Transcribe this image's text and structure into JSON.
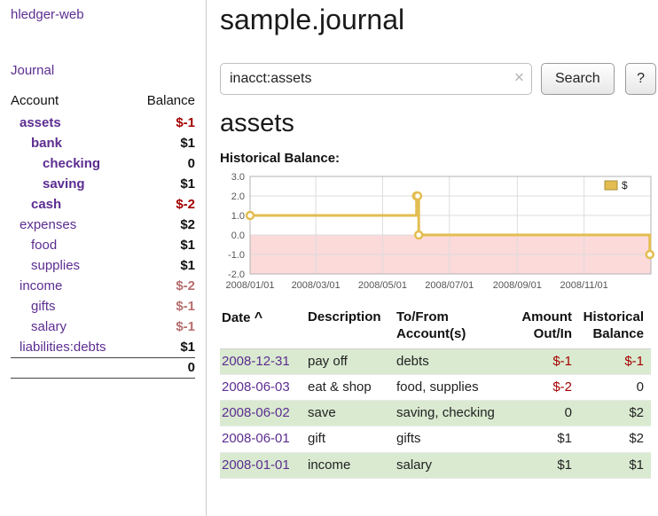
{
  "colors": {
    "accent_purple": "#5c2d91",
    "negative_red": "#a40000",
    "negative_muted": "#b76e6e",
    "row_highlight_green": "#d9ead0",
    "chart_line_gold": "#e3bd51",
    "chart_negative_pink": "#fcdada"
  },
  "sidebar": {
    "brand": "hledger-web",
    "journal_label": "Journal",
    "accounts_table": {
      "headers": [
        "Account",
        "Balance"
      ],
      "rows": [
        {
          "account": "assets",
          "indent": 0,
          "bold": true,
          "balance": "$-1",
          "negative": true
        },
        {
          "account": "bank",
          "indent": 1,
          "bold": true,
          "balance": "$1",
          "negative": false
        },
        {
          "account": "checking",
          "indent": 2,
          "bold": true,
          "balance": "0",
          "negative": false
        },
        {
          "account": "saving",
          "indent": 2,
          "bold": true,
          "balance": "$1",
          "negative": false
        },
        {
          "account": "cash",
          "indent": 1,
          "bold": true,
          "balance": "$-2",
          "negative": true
        },
        {
          "account": "expenses",
          "indent": 0,
          "bold": false,
          "balance": "$2",
          "negative": false
        },
        {
          "account": "food",
          "indent": 1,
          "bold": false,
          "balance": "$1",
          "negative": false
        },
        {
          "account": "supplies",
          "indent": 1,
          "bold": false,
          "balance": "$1",
          "negative": false
        },
        {
          "account": "income",
          "indent": 0,
          "bold": false,
          "balance": "$-2",
          "negative": true
        },
        {
          "account": "gifts",
          "indent": 1,
          "bold": false,
          "balance": "$-1",
          "negative": true
        },
        {
          "account": "salary",
          "indent": 1,
          "bold": false,
          "balance": "$-1",
          "negative": true
        },
        {
          "account": "liabilities:debts",
          "indent": 0,
          "bold": false,
          "balance": "$1",
          "negative": false
        }
      ],
      "total": "0"
    }
  },
  "header": {
    "title": "sample.journal"
  },
  "search": {
    "value": "inacct:assets",
    "clear_icon": "×",
    "button_label": "Search",
    "help_label": "?"
  },
  "account_page": {
    "title": "assets",
    "chart_label": "Historical Balance:"
  },
  "chart_data": {
    "type": "line",
    "step": true,
    "title": "Historical Balance of assets",
    "ylim": [
      -2,
      3
    ],
    "yticks": [
      "3.0",
      "2.0",
      "1.0",
      "0.0",
      "-1.0",
      "-2.0"
    ],
    "xlim_days": [
      0,
      366
    ],
    "xticks": [
      {
        "day": 0,
        "label": "2008/01/01"
      },
      {
        "day": 60,
        "label": "2008/03/01"
      },
      {
        "day": 121,
        "label": "2008/05/01"
      },
      {
        "day": 182,
        "label": "2008/07/01"
      },
      {
        "day": 244,
        "label": "2008/09/01"
      },
      {
        "day": 305,
        "label": "2008/11/01"
      }
    ],
    "legend": [
      {
        "label": "$",
        "color": "#e3bd51"
      }
    ],
    "negative_region": {
      "from": -2,
      "to": 0,
      "color": "#fcdada"
    },
    "series": [
      {
        "name": "$",
        "color": "#e3bd51",
        "points": [
          {
            "date": "2008-01-01",
            "day": 0,
            "value": 1
          },
          {
            "date": "2008-06-01",
            "day": 152,
            "value": 2
          },
          {
            "date": "2008-06-02",
            "day": 153,
            "value": 2
          },
          {
            "date": "2008-06-03",
            "day": 154,
            "value": 0
          },
          {
            "date": "2008-12-31",
            "day": 365,
            "value": -1
          }
        ]
      }
    ],
    "grid": true,
    "legend_position": "top-right"
  },
  "register_table": {
    "headers": [
      "Date",
      "Description",
      "To/From Account(s)",
      "Amount Out/In",
      "Historical Balance"
    ],
    "sort_icon": "^",
    "rows": [
      {
        "date": "2008-12-31",
        "description": "pay off",
        "accounts": "debts",
        "amount": "$-1",
        "amount_negative": true,
        "balance": "$-1",
        "balance_negative": true,
        "shaded": true
      },
      {
        "date": "2008-06-03",
        "description": "eat & shop",
        "accounts": "food, supplies",
        "amount": "$-2",
        "amount_negative": true,
        "balance": "0",
        "balance_negative": false,
        "shaded": false
      },
      {
        "date": "2008-06-02",
        "description": "save",
        "accounts": "saving, checking",
        "amount": "0",
        "amount_negative": false,
        "balance": "$2",
        "balance_negative": false,
        "shaded": true
      },
      {
        "date": "2008-06-01",
        "description": "gift",
        "accounts": "gifts",
        "amount": "$1",
        "amount_negative": false,
        "balance": "$2",
        "balance_negative": false,
        "shaded": false
      },
      {
        "date": "2008-01-01",
        "description": "income",
        "accounts": "salary",
        "amount": "$1",
        "amount_negative": false,
        "balance": "$1",
        "balance_negative": false,
        "shaded": true
      }
    ]
  }
}
